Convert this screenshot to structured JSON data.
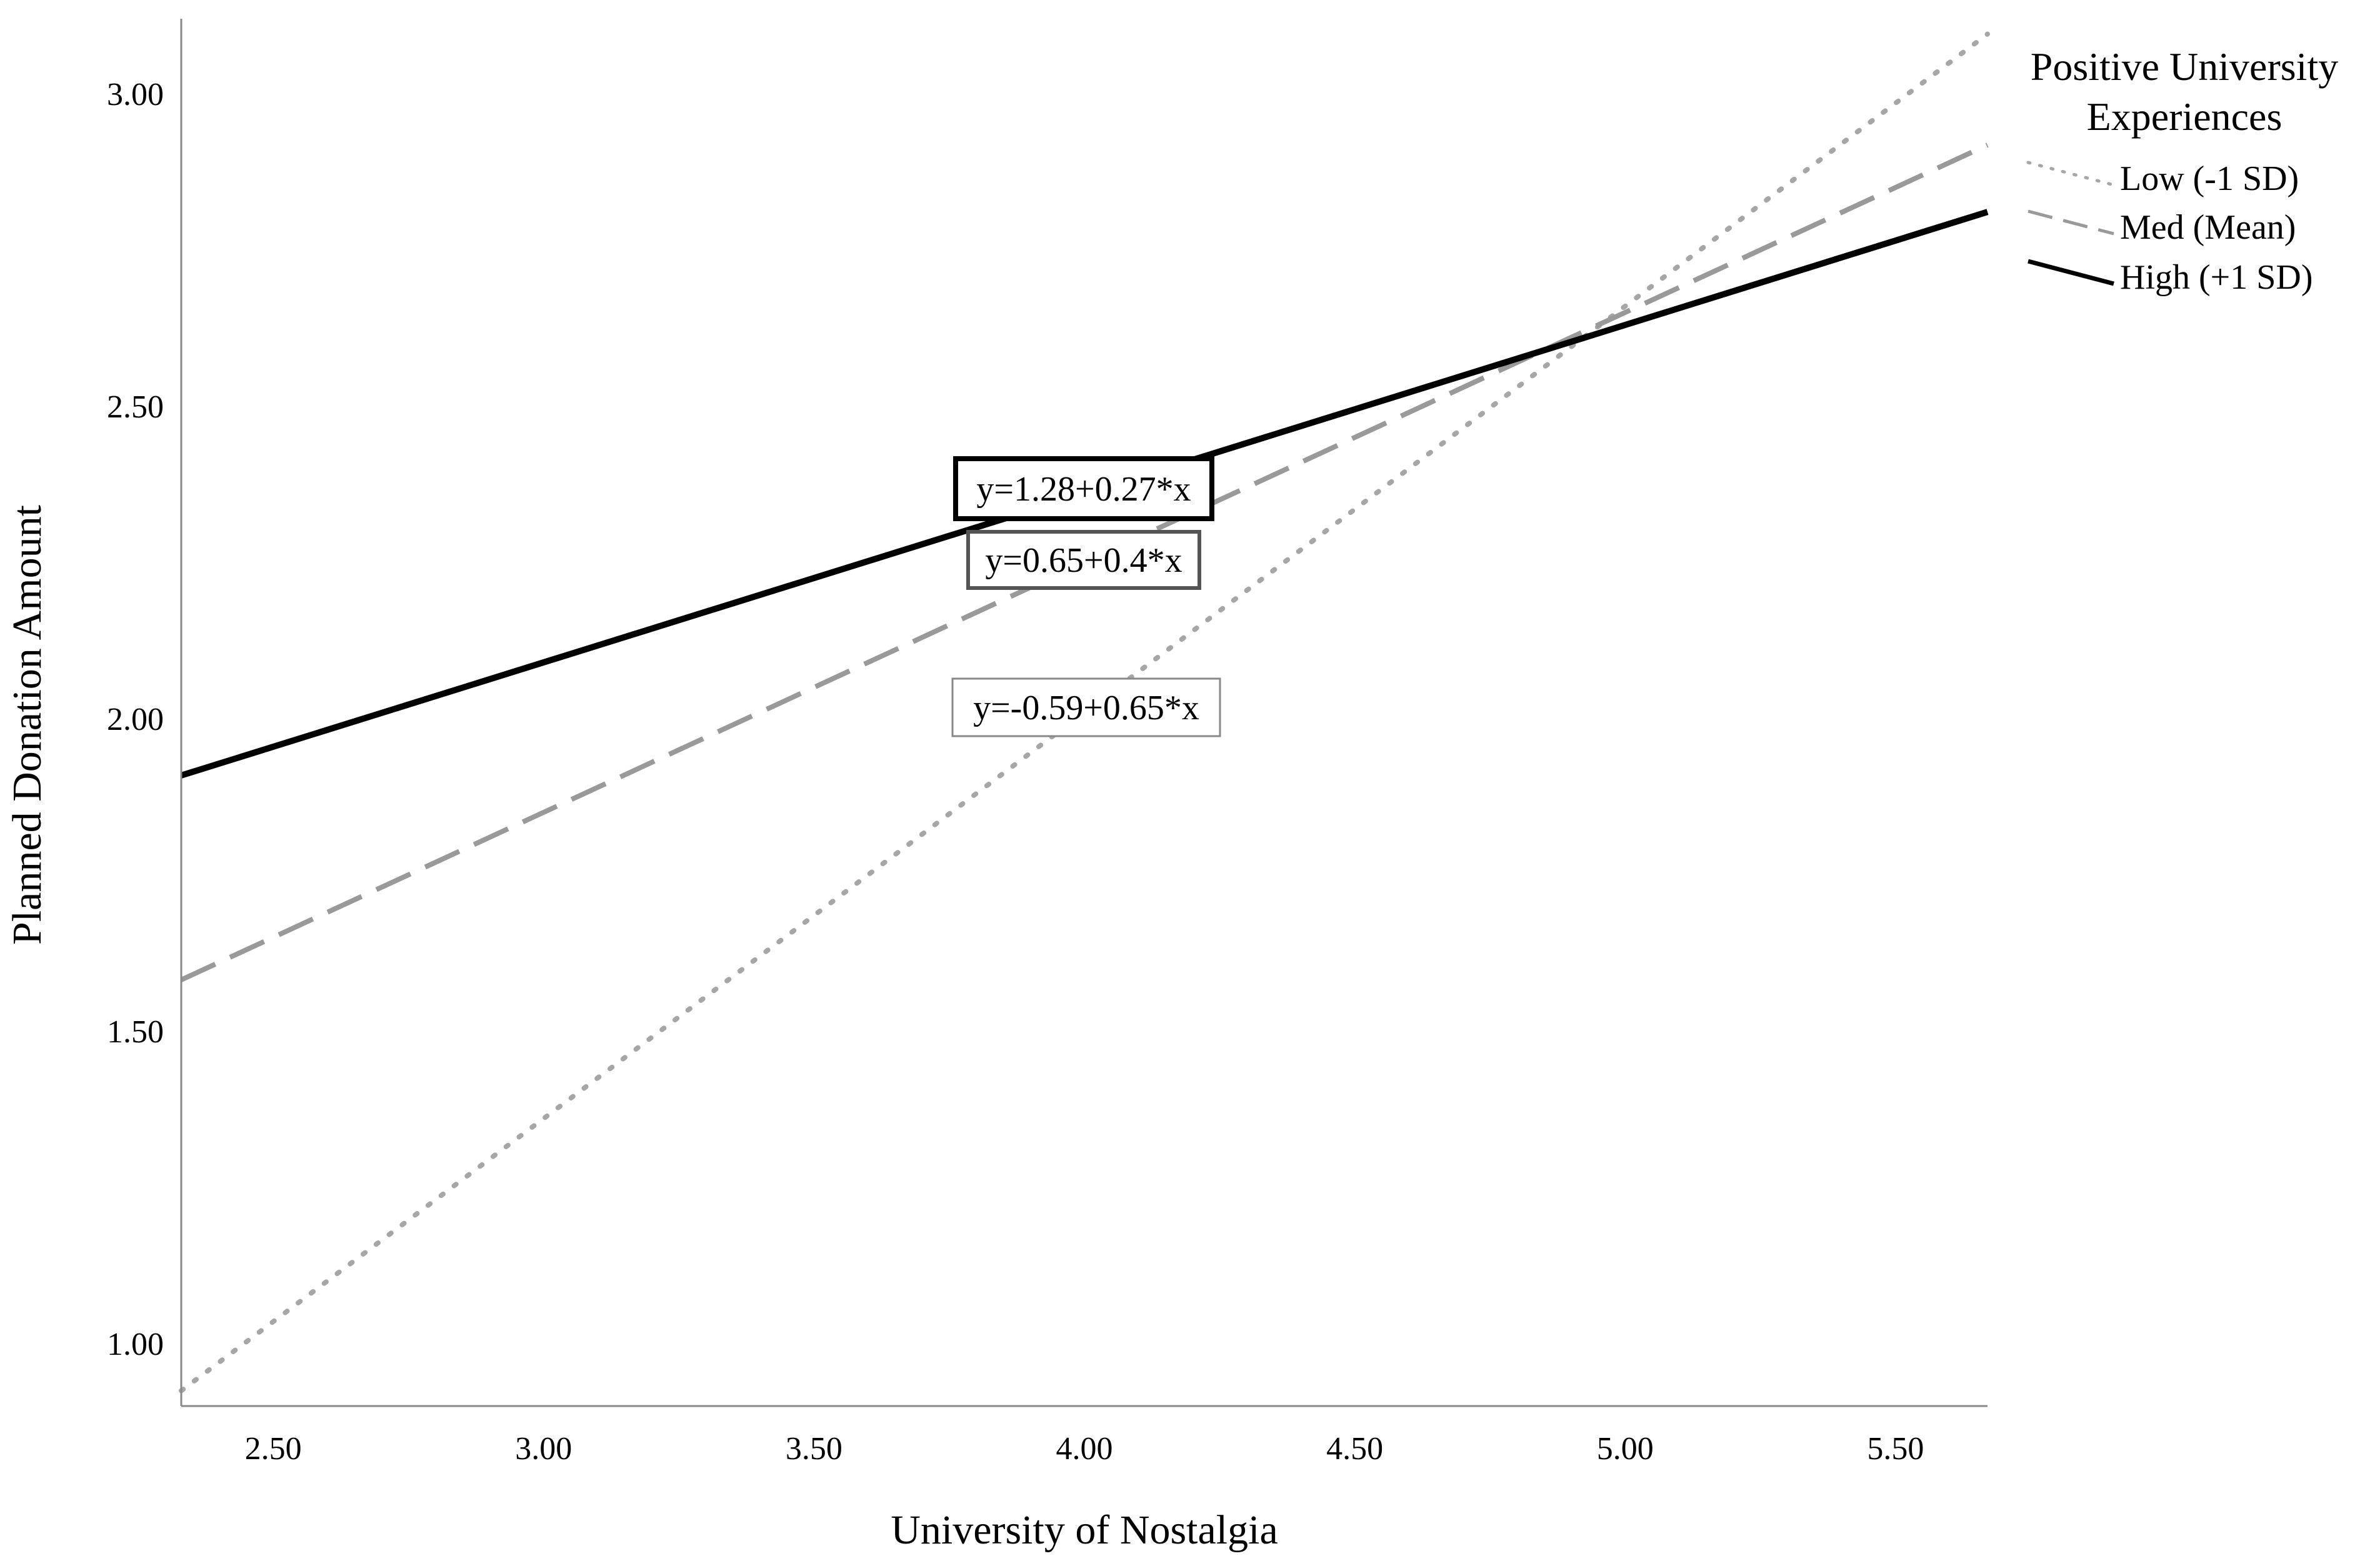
{
  "chart_data": {
    "type": "line",
    "title": "",
    "xlabel": "University of Nostalgia",
    "ylabel": "Planned Donation Amount",
    "xlim": [
      2.33,
      5.67
    ],
    "ylim": [
      0.9,
      3.12
    ],
    "x_ticks": [
      "2.50",
      "3.00",
      "3.50",
      "4.00",
      "4.50",
      "5.00",
      "5.50"
    ],
    "y_ticks": [
      "1.00",
      "1.50",
      "2.00",
      "2.50",
      "3.00"
    ],
    "grid": false,
    "legend": {
      "title_lines": [
        "Positive University",
        "Experiences"
      ],
      "position": "top-right, outside plot"
    },
    "series": [
      {
        "name": "Low (-1 SD)",
        "equation": "y=-0.59+0.65*x",
        "intercept": -0.59,
        "slope": 0.65,
        "style": "dotted",
        "color": "#a6a6a6"
      },
      {
        "name": "Med (Mean)",
        "equation": "y=0.65+0.4*x",
        "intercept": 0.65,
        "slope": 0.4,
        "style": "dashed",
        "color": "#999999"
      },
      {
        "name": "High (+1 SD)",
        "equation": "y=1.28+0.27*x",
        "intercept": 1.28,
        "slope": 0.27,
        "style": "solid",
        "color": "#000000"
      }
    ]
  }
}
